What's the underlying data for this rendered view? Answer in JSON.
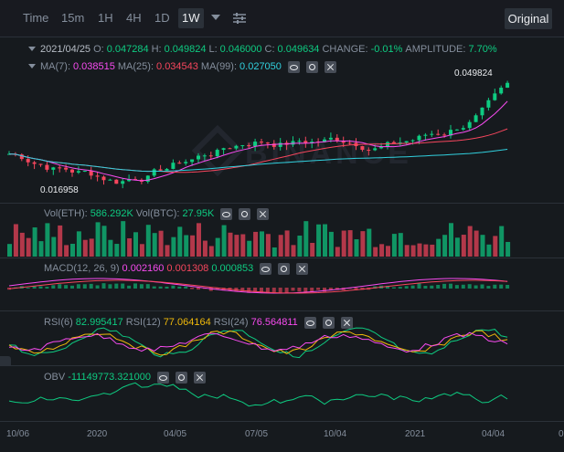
{
  "toolbar": {
    "timeframes": [
      "Time",
      "15m",
      "1H",
      "4H",
      "1D",
      "1W"
    ],
    "active": "1W",
    "original_label": "Original"
  },
  "ohlc": {
    "date": "2021/04/25",
    "o_label": "O:",
    "o": "0.047284",
    "h_label": "H:",
    "h": "0.049824",
    "l_label": "L:",
    "l": "0.046000",
    "c_label": "C:",
    "c": "0.049634",
    "change_label": "CHANGE:",
    "change": "-0.01%",
    "amplitude_label": "AMPLITUDE:",
    "amplitude": "7.70%"
  },
  "ma": {
    "ma7_label": "MA(7):",
    "ma7": "0.038515",
    "ma25_label": "MA(25):",
    "ma25": "0.034543",
    "ma99_label": "MA(99):",
    "ma99": "0.027050"
  },
  "price_labels": {
    "high": "0.049824",
    "low": "0.016958"
  },
  "watermark": "BINANCE",
  "vol": {
    "eth_label": "Vol(ETH):",
    "eth": "586.292K",
    "btc_label": "Vol(BTC):",
    "btc": "27.95K"
  },
  "macd": {
    "label": "MACD(12, 26, 9)",
    "v1": "0.002160",
    "v2": "0.001308",
    "v3": "0.000853"
  },
  "rsi": {
    "rsi6_label": "RSI(6)",
    "rsi6": "82.995417",
    "rsi12_label": "RSI(12)",
    "rsi12": "77.064164",
    "rsi24_label": "RSI(24)",
    "rsi24": "76.564811"
  },
  "obv": {
    "label": "OBV",
    "value": "-11149773.321000"
  },
  "xaxis": [
    "10/06",
    "2020",
    "04/05",
    "07/05",
    "10/04",
    "2021",
    "04/04",
    "0"
  ],
  "side_tab": "›",
  "colors": {
    "up": "#0ecb81",
    "down": "#f6465d",
    "ma7": "#f84bf0",
    "ma25": "#f6465d",
    "ma99": "#31d0de",
    "rsi12": "#f0b90b",
    "obv": "#0ecb81"
  }
}
